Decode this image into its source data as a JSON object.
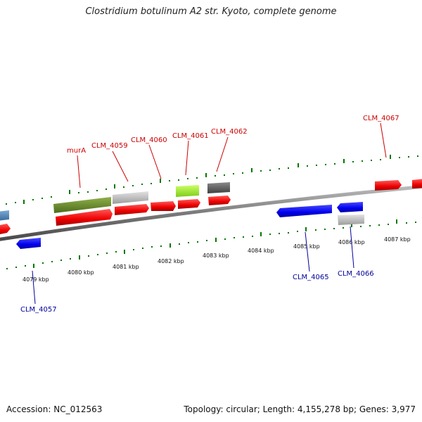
{
  "title": "Clostridium botulinum A2 str. Kyoto, complete genome",
  "footer": {
    "accession": "Accession: NC_012563",
    "summary": "Topology: circular; Length: 4,155,278 bp; Genes: 3,977"
  },
  "colors": {
    "forward_gene": "#ff0000",
    "reverse_gene": "#0000ff",
    "label_forward": "#cc0000",
    "label_reverse": "#000099",
    "tick": "#007700",
    "backbone": "#808080"
  },
  "tick_labels": [
    "4079 kbp",
    "4080 kbp",
    "4081 kbp",
    "4082 kbp",
    "4083 kbp",
    "4084 kbp",
    "4085 kbp",
    "4086 kbp",
    "4087 kbp"
  ],
  "gene_labels": {
    "murA": "murA",
    "clm4059": "CLM_4059",
    "clm4060": "CLM_4060",
    "clm4061": "CLM_4061",
    "clm4062": "CLM_4062",
    "clm4067": "CLM_4067",
    "clm4057": "CLM_4057",
    "clm4065": "CLM_4065",
    "clm4066": "CLM_4066"
  }
}
